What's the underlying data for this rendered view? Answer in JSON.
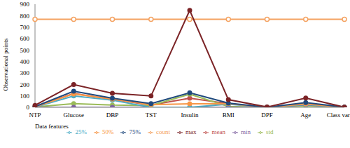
{
  "chart_data": {
    "type": "line",
    "x_label": "Data features",
    "y_label": "Observational points",
    "categories": [
      "NTP",
      "Glucose",
      "DBP",
      "TST",
      "Insulin",
      "BMI",
      "DPF",
      "Age",
      "Class variable"
    ],
    "ylim": [
      0,
      900
    ],
    "yticks": [
      0,
      100,
      200,
      300,
      400,
      500,
      600,
      700,
      800,
      900
    ],
    "grid": false,
    "legend": "bottom",
    "series": [
      {
        "name": "count",
        "color": "#f4a261",
        "marker": "open_circle",
        "values": [
          768,
          768,
          768,
          768,
          768,
          768,
          768,
          768,
          768
        ]
      },
      {
        "name": "mean",
        "color": "#c0504d",
        "marker": "circle",
        "values": [
          3.8,
          120.9,
          69.1,
          20.5,
          79.8,
          32.0,
          0.47,
          33.2,
          0.35
        ]
      },
      {
        "name": "std",
        "color": "#9bbb59",
        "marker": "circle",
        "values": [
          3.4,
          32.0,
          19.4,
          16.0,
          115.2,
          7.9,
          0.33,
          11.8,
          0.48
        ]
      },
      {
        "name": "min",
        "color": "#8064a2",
        "marker": "circle",
        "values": [
          0,
          0,
          0,
          0,
          0,
          0,
          0.08,
          21,
          0
        ]
      },
      {
        "name": "25%",
        "color": "#4bacc6",
        "marker": "circle",
        "values": [
          1,
          99,
          62,
          0,
          0,
          27.3,
          0.24,
          24,
          0
        ]
      },
      {
        "name": "50%",
        "color": "#f79646",
        "marker": "circle",
        "values": [
          3,
          117,
          72,
          23,
          30.5,
          32,
          0.37,
          29,
          0
        ]
      },
      {
        "name": "75%",
        "color": "#1f497d",
        "marker": "circle",
        "values": [
          6,
          140.25,
          80,
          32,
          127.25,
          36.6,
          0.63,
          41,
          1
        ]
      },
      {
        "name": "max",
        "color": "#7b2326",
        "marker": "circle",
        "values": [
          17,
          199,
          122,
          99,
          846,
          67.1,
          2.42,
          81,
          1
        ]
      }
    ]
  }
}
